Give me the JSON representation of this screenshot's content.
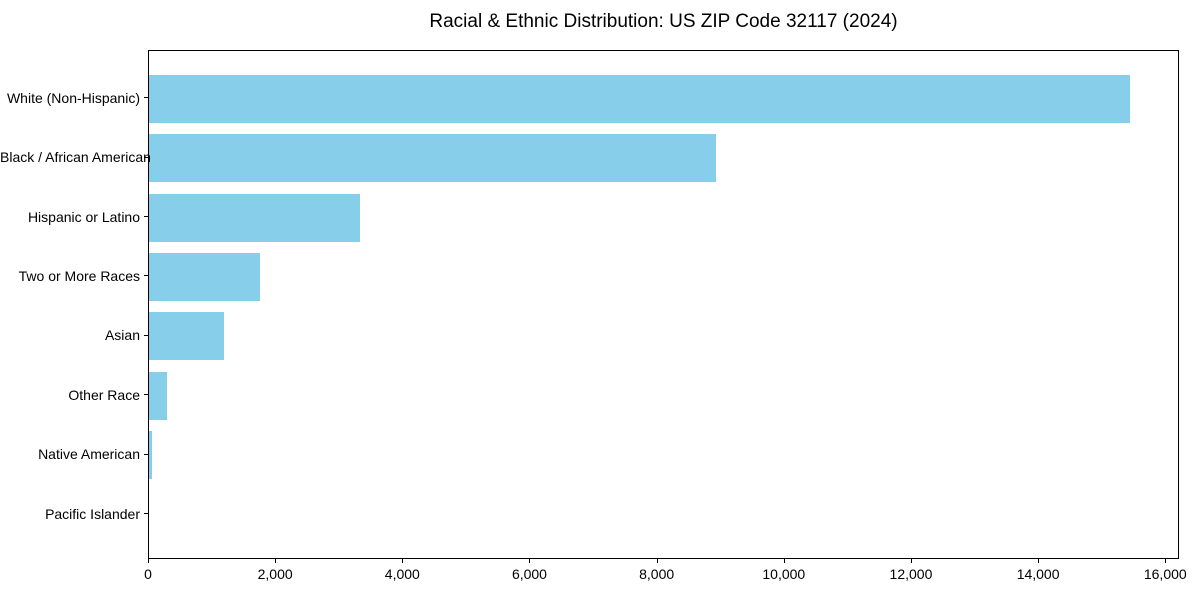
{
  "chart_data": {
    "type": "bar",
    "orientation": "horizontal",
    "title": "Racial & Ethnic Distribution: US ZIP Code 32117 (2024)",
    "categories": [
      "White (Non-Hispanic)",
      "Black / African American",
      "Hispanic or Latino",
      "Two or More Races",
      "Asian",
      "Other Race",
      "Native American",
      "Pacific Islander"
    ],
    "values": [
      15440,
      8920,
      3320,
      1740,
      1180,
      280,
      55,
      0
    ],
    "xlabel": "",
    "ylabel": "",
    "xlim": [
      0,
      16200
    ],
    "xticks": [
      0,
      2000,
      4000,
      6000,
      8000,
      10000,
      12000,
      14000,
      16000
    ],
    "xtick_labels": [
      "0",
      "2,000",
      "4,000",
      "6,000",
      "8,000",
      "10,000",
      "12,000",
      "14,000",
      "16,000"
    ],
    "bar_color": "#87CEEB",
    "axis_color": "#000000",
    "background_color": "#ffffff",
    "grid": false,
    "legend": null
  }
}
